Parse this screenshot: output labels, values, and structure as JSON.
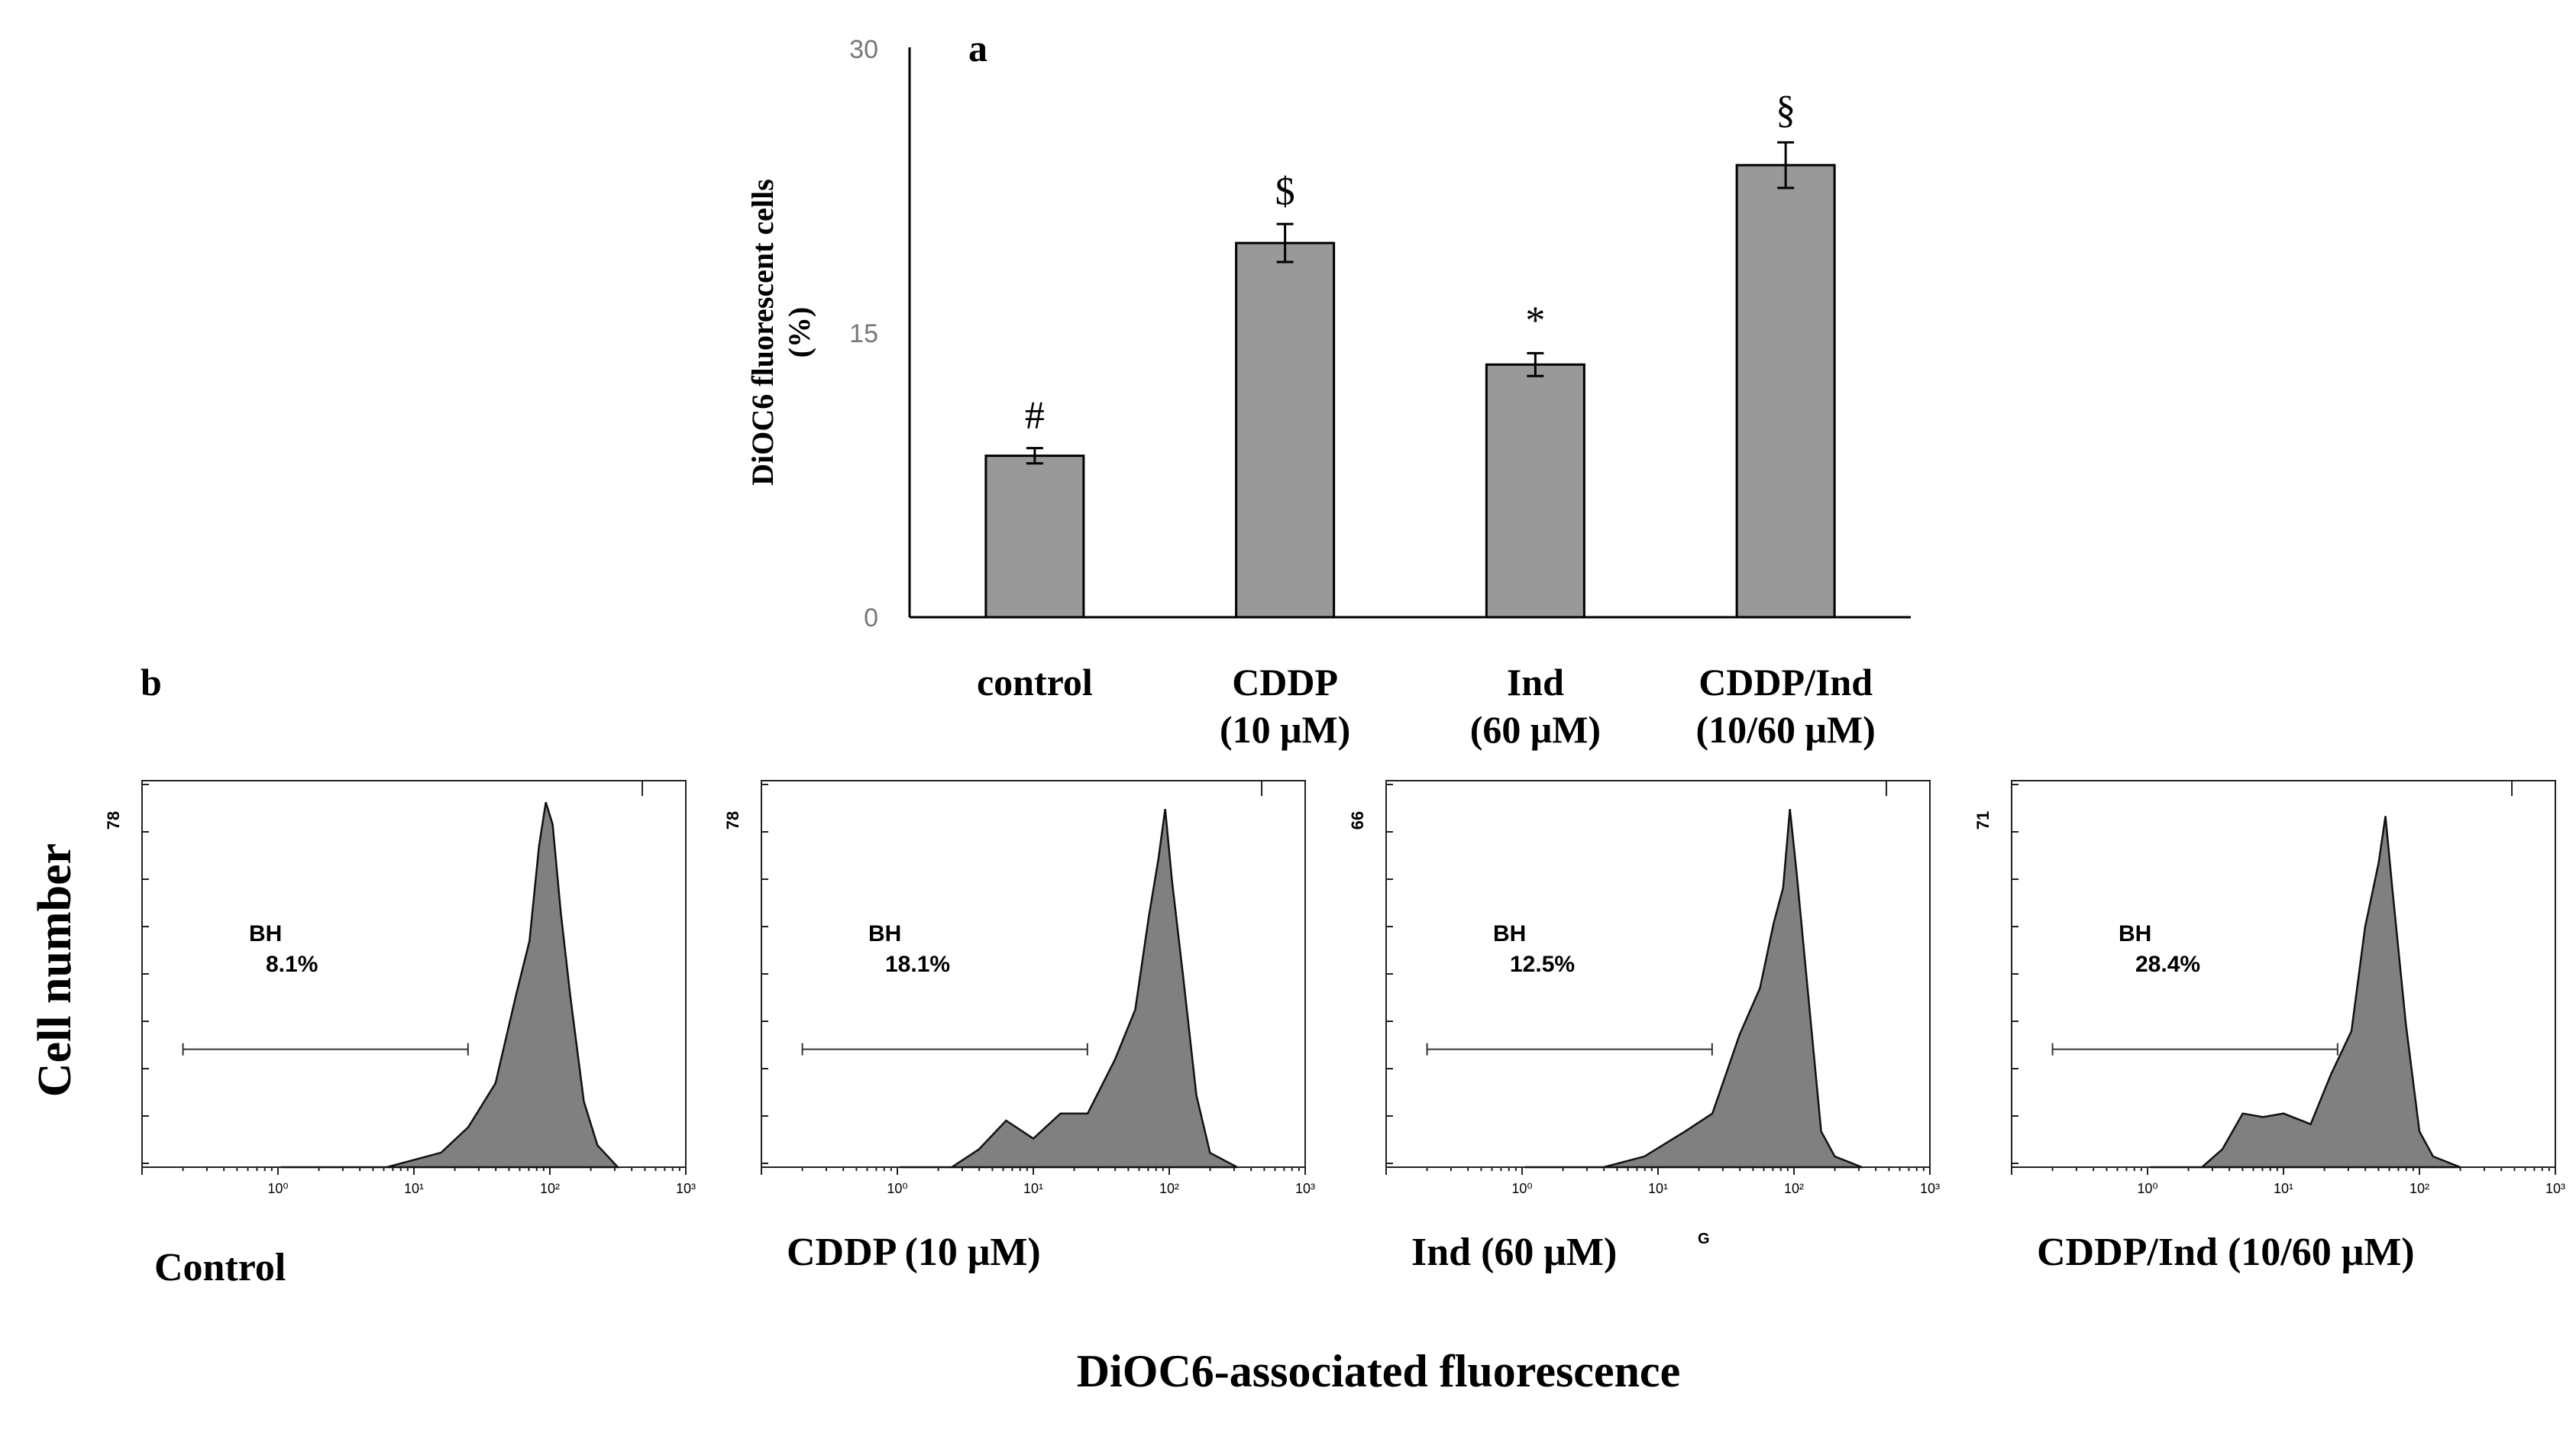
{
  "panel_labels": {
    "a": "a",
    "b": "b"
  },
  "colors": {
    "bar_fill": "#999999",
    "hist_fill": "#808080",
    "stroke": "#000000"
  },
  "chart_data": [
    {
      "type": "bar",
      "panel": "a",
      "title": "",
      "ylabel_line1": "DiOC6 fluorescent cells",
      "ylabel_line2": "(%)",
      "ylim": [
        0,
        30
      ],
      "yticks": [
        0,
        15,
        30
      ],
      "categories": [
        {
          "line1": "control",
          "line2": ""
        },
        {
          "line1": "CDDP",
          "line2": "(10 μM)"
        },
        {
          "line1": "Ind",
          "line2": "(60 μM)"
        },
        {
          "line1": "CDDP/Ind",
          "line2": "(10/60 μM)"
        }
      ],
      "values": [
        8.5,
        19.7,
        13.3,
        23.8
      ],
      "errors": [
        0.4,
        1.0,
        0.6,
        1.2
      ],
      "significance": [
        "#",
        "$",
        "*",
        "§"
      ]
    },
    {
      "type": "area",
      "panel": "b",
      "ylabel": "Cell number",
      "xlabel": "DiOC6-associated fluorescence",
      "xscale": "log",
      "xlim": [
        0.1,
        1000
      ],
      "xticks": [
        "10⁰",
        "10¹",
        "10²",
        "10³"
      ],
      "histograms": [
        {
          "name": "Control",
          "ymax_label": "78",
          "gate_name": "BH",
          "gate_pct": "8.1%",
          "gate_range": [
            0.2,
            25
          ],
          "extra": "",
          "x": [
            0.02,
            0.8,
            1.2,
            1.4,
            1.6,
            1.75,
            1.85,
            1.92,
            1.97,
            2.02,
            2.08,
            2.15,
            2.25,
            2.35,
            2.5
          ],
          "y": [
            0,
            0,
            4,
            9,
            25,
            45,
            64,
            86,
            100,
            92,
            72,
            45,
            20,
            6,
            0
          ]
        },
        {
          "name": "CDDP (10 μM)",
          "ymax_label": "78",
          "gate_name": "BH",
          "gate_pct": "18.1%",
          "gate_range": [
            0.2,
            25
          ],
          "extra": "",
          "x": [
            0.02,
            0.4,
            0.6,
            0.8,
            1.0,
            1.2,
            1.4,
            1.6,
            1.75,
            1.85,
            1.92,
            1.97,
            2.02,
            2.1,
            2.2,
            2.3,
            2.5
          ],
          "y": [
            0,
            0,
            7,
            11,
            10,
            13,
            17,
            28,
            46,
            68,
            88,
            100,
            82,
            52,
            22,
            4,
            0
          ]
        },
        {
          "name": "Ind (60 μM)",
          "ymax_label": "66",
          "gate_name": "BH",
          "gate_pct": "12.5%",
          "gate_range": [
            0.2,
            25
          ],
          "extra": "G",
          "x": [
            0.02,
            0.6,
            0.9,
            1.2,
            1.4,
            1.6,
            1.75,
            1.85,
            1.92,
            1.97,
            2.02,
            2.1,
            2.2,
            2.3,
            2.5
          ],
          "y": [
            0,
            0,
            3,
            8,
            17,
            35,
            52,
            66,
            80,
            100,
            84,
            48,
            12,
            3,
            0
          ]
        },
        {
          "name": "CDDP/Ind (10/60 μM)",
          "ymax_label": "71",
          "gate_name": "BH",
          "gate_pct": "28.4%",
          "gate_range": [
            0.2,
            25
          ],
          "extra": "",
          "x": [
            0.02,
            0.4,
            0.55,
            0.7,
            0.85,
            1.0,
            1.2,
            1.35,
            1.5,
            1.6,
            1.7,
            1.75,
            1.8,
            1.9,
            2.0,
            2.1,
            2.3
          ],
          "y": [
            0,
            0,
            5,
            13,
            16,
            13,
            14,
            24,
            40,
            65,
            87,
            96,
            80,
            38,
            12,
            3,
            0
          ]
        }
      ]
    }
  ]
}
